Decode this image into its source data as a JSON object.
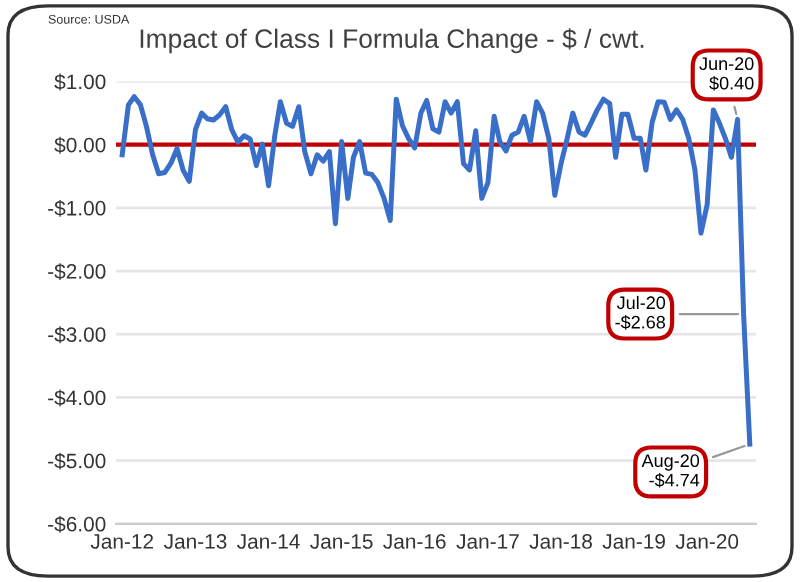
{
  "chart_data": {
    "type": "line",
    "title": "Impact of Class I Formula Change - $ / cwt.",
    "annotations": [
      "Source: USDA",
      {
        "text": "Jun-20\n$0.40",
        "x": "2020-06",
        "y": 0.4
      },
      {
        "text": "Jul-20\n-$2.68",
        "x": "2020-07",
        "y": -2.68
      },
      {
        "text": "Aug-20\n-$4.74",
        "x": "2020-08",
        "y": -4.74
      }
    ],
    "x": [
      "2012-01",
      "2012-02",
      "2012-03",
      "2012-04",
      "2012-05",
      "2012-06",
      "2012-07",
      "2012-08",
      "2012-09",
      "2012-10",
      "2012-11",
      "2012-12",
      "2013-01",
      "2013-02",
      "2013-03",
      "2013-04",
      "2013-05",
      "2013-06",
      "2013-07",
      "2013-08",
      "2013-09",
      "2013-10",
      "2013-11",
      "2013-12",
      "2014-01",
      "2014-02",
      "2014-03",
      "2014-04",
      "2014-05",
      "2014-06",
      "2014-07",
      "2014-08",
      "2014-09",
      "2014-10",
      "2014-11",
      "2014-12",
      "2015-01",
      "2015-02",
      "2015-03",
      "2015-04",
      "2015-05",
      "2015-06",
      "2015-07",
      "2015-08",
      "2015-09",
      "2015-10",
      "2015-11",
      "2015-12",
      "2016-01",
      "2016-02",
      "2016-03",
      "2016-04",
      "2016-05",
      "2016-06",
      "2016-07",
      "2016-08",
      "2016-09",
      "2016-10",
      "2016-11",
      "2016-12",
      "2017-01",
      "2017-02",
      "2017-03",
      "2017-04",
      "2017-05",
      "2017-06",
      "2017-07",
      "2017-08",
      "2017-09",
      "2017-10",
      "2017-11",
      "2017-12",
      "2018-01",
      "2018-02",
      "2018-03",
      "2018-04",
      "2018-05",
      "2018-06",
      "2018-07",
      "2018-08",
      "2018-09",
      "2018-10",
      "2018-11",
      "2018-12",
      "2019-01",
      "2019-02",
      "2019-03",
      "2019-04",
      "2019-05",
      "2019-06",
      "2019-07",
      "2019-08",
      "2019-09",
      "2019-10",
      "2019-11",
      "2019-12",
      "2020-01",
      "2020-02",
      "2020-03",
      "2020-04",
      "2020-05",
      "2020-06",
      "2020-07",
      "2020-08"
    ],
    "series": [
      {
        "color": "#3a6fc9",
        "values": [
          -0.16,
          0.63,
          0.76,
          0.63,
          0.29,
          -0.16,
          -0.46,
          -0.44,
          -0.29,
          -0.06,
          -0.41,
          -0.58,
          0.24,
          0.5,
          0.41,
          0.39,
          0.47,
          0.6,
          0.24,
          0.04,
          0.14,
          0.09,
          -0.33,
          0.01,
          -0.65,
          0.14,
          0.68,
          0.34,
          0.29,
          0.6,
          -0.11,
          -0.46,
          -0.16,
          -0.26,
          -0.11,
          -1.25,
          0.05,
          -0.85,
          -0.2,
          0.05,
          -0.45,
          -0.47,
          -0.6,
          -0.85,
          -1.2,
          0.72,
          0.3,
          0.1,
          -0.05,
          0.5,
          0.7,
          0.25,
          0.2,
          0.68,
          0.5,
          0.68,
          -0.3,
          -0.4,
          0.22,
          -0.85,
          -0.6,
          0.45,
          0.05,
          -0.1,
          0.15,
          0.2,
          0.45,
          0.05,
          0.68,
          0.5,
          0.1,
          -0.8,
          -0.3,
          0.1,
          0.5,
          0.2,
          0.15,
          0.35,
          0.55,
          0.72,
          0.65,
          -0.2,
          0.48,
          0.48,
          0.1,
          0.1,
          -0.4,
          0.35,
          0.68,
          0.67,
          0.4,
          0.55,
          0.4,
          0.1,
          -0.4,
          -1.4,
          -0.95,
          0.55,
          0.35,
          0.1,
          -0.2,
          0.4,
          -2.68,
          -4.74
        ]
      }
    ],
    "xlim": [
      "2011-12",
      "2020-09"
    ],
    "xticks": [
      {
        "value": "2012-01",
        "label": "Jan-12"
      },
      {
        "value": "2013-01",
        "label": "Jan-13"
      },
      {
        "value": "2014-01",
        "label": "Jan-14"
      },
      {
        "value": "2015-01",
        "label": "Jan-15"
      },
      {
        "value": "2016-01",
        "label": "Jan-16"
      },
      {
        "value": "2017-01",
        "label": "Jan-17"
      },
      {
        "value": "2018-01",
        "label": "Jan-18"
      },
      {
        "value": "2019-01",
        "label": "Jan-19"
      },
      {
        "value": "2020-01",
        "label": "Jan-20"
      }
    ],
    "ylim": [
      -6,
      1
    ],
    "yticks": [
      {
        "value": 1,
        "label": "$1.00"
      },
      {
        "value": 0,
        "label": "$0.00"
      },
      {
        "value": -1,
        "label": "-$1.00"
      },
      {
        "value": -2,
        "label": "-$2.00"
      },
      {
        "value": -3,
        "label": "-$3.00"
      },
      {
        "value": -4,
        "label": "-$4.00"
      },
      {
        "value": -5,
        "label": "-$5.00"
      },
      {
        "value": -6,
        "label": "-$6.00"
      }
    ],
    "grid": "y",
    "marker": "none",
    "line_style": "solid",
    "ref_lines": [
      {
        "axis": "y",
        "value": 0,
        "color": "#c00000",
        "line_style": "solid"
      }
    ]
  }
}
